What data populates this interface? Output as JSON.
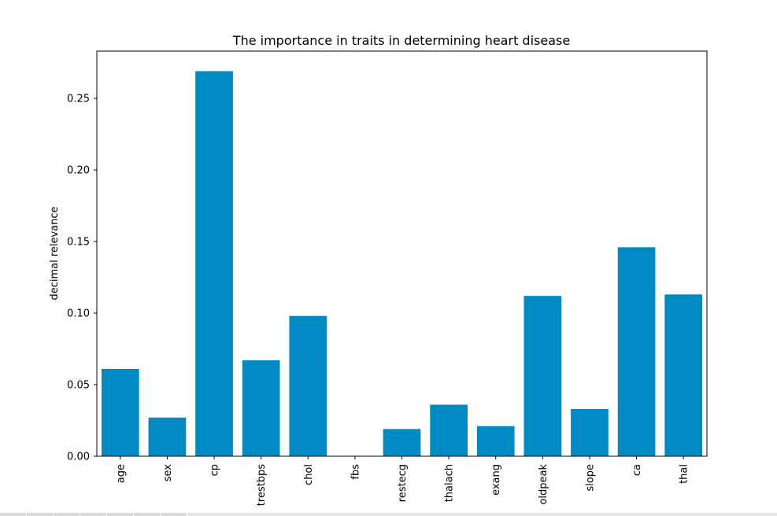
{
  "chart_data": {
    "type": "bar",
    "title": "The importance in traits in determining heart disease",
    "xlabel": "",
    "ylabel": "decimal relevance",
    "categories": [
      "age",
      "sex",
      "cp",
      "trestbps",
      "chol",
      "fbs",
      "restecg",
      "thalach",
      "exang",
      "oldpeak",
      "slope",
      "ca",
      "thal"
    ],
    "values": [
      0.061,
      0.027,
      0.269,
      0.067,
      0.098,
      0.0,
      0.019,
      0.036,
      0.021,
      0.112,
      0.033,
      0.146,
      0.113
    ],
    "ylim": [
      0,
      0.283
    ],
    "yticks": [
      "0.00",
      "0.05",
      "0.10",
      "0.15",
      "0.20",
      "0.25"
    ],
    "grid": false,
    "bar_color": "#008ac4"
  }
}
